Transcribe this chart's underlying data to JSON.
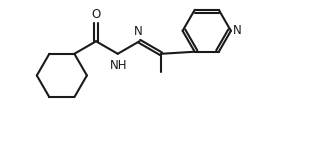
{
  "bg_color": "#ffffff",
  "line_color": "#1a1a1a",
  "lw": 1.5,
  "fs": 8.5,
  "figsize": [
    3.24,
    1.48
  ],
  "dpi": 100,
  "xlim": [
    -0.5,
    10.5
  ],
  "ylim": [
    0.5,
    5.2
  ]
}
